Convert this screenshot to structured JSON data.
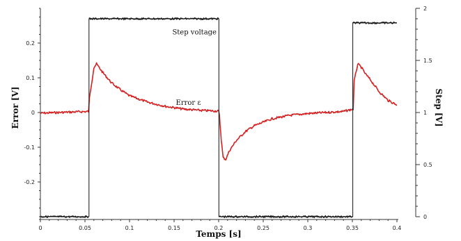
{
  "chart_data": {
    "type": "line",
    "title": "",
    "xlabel": "Temps [s]",
    "ylabel_left": "Error [V]",
    "ylabel_right": "Step [V]",
    "xlim": [
      0,
      0.4
    ],
    "ylim_left": [
      -0.3,
      0.3
    ],
    "ylim_right": [
      0,
      2
    ],
    "x_ticks": [
      0,
      0.05,
      0.1,
      0.15,
      0.2,
      0.25,
      0.3,
      0.35,
      0.4
    ],
    "x_tick_labels": [
      "0",
      "0.05",
      "0.1",
      "0.15",
      "0.2",
      "0.25",
      "0.3",
      "0.35",
      "0.4"
    ],
    "y_left_ticks": [
      0.2,
      0.1,
      0,
      -0.1,
      -0.2
    ],
    "y_left_tick_labels": [
      "0.2",
      "0.1",
      "0",
      "-0.1",
      "-0.2"
    ],
    "y_right_ticks": [
      2,
      1.5,
      1,
      0.5,
      0
    ],
    "y_right_tick_labels": [
      "2",
      "1.5",
      "1",
      "0.5",
      "0"
    ],
    "grid": false,
    "annotations": [
      {
        "text": "Step voltage",
        "x": 0.148,
        "y": 0.225,
        "axis": "left"
      },
      {
        "text": "Error ε",
        "x": 0.152,
        "y": 0.022,
        "axis": "left"
      }
    ],
    "series": [
      {
        "axis": "left",
        "color": "#d42020",
        "x": [
          0,
          0.02,
          0.054,
          0.055,
          0.06,
          0.063,
          0.07,
          0.08,
          0.09,
          0.1,
          0.12,
          0.14,
          0.16,
          0.18,
          0.2,
          0.2009,
          0.203,
          0.205,
          0.208,
          0.212,
          0.22,
          0.23,
          0.24,
          0.26,
          0.28,
          0.3,
          0.34,
          0.3509,
          0.352,
          0.356,
          0.36,
          0.365,
          0.37,
          0.38,
          0.39,
          0.4
        ],
        "y": [
          -0.002,
          0,
          0.003,
          0.04,
          0.13,
          0.14,
          0.115,
          0.085,
          0.065,
          0.048,
          0.03,
          0.018,
          0.01,
          0.006,
          0.004,
          -0.01,
          -0.08,
          -0.13,
          -0.135,
          -0.11,
          -0.08,
          -0.055,
          -0.038,
          -0.018,
          -0.008,
          -0.003,
          0.003,
          0.01,
          0.09,
          0.14,
          0.13,
          0.11,
          0.095,
          0.06,
          0.035,
          0.022
        ]
      },
      {
        "axis": "right",
        "color": "#111111",
        "x": [
          0,
          0.0545,
          0.0545,
          0.2002,
          0.2002,
          0.3505,
          0.3505,
          0.4
        ],
        "y": [
          0,
          0,
          1.9,
          1.9,
          0,
          0,
          1.86,
          1.86
        ]
      }
    ]
  }
}
